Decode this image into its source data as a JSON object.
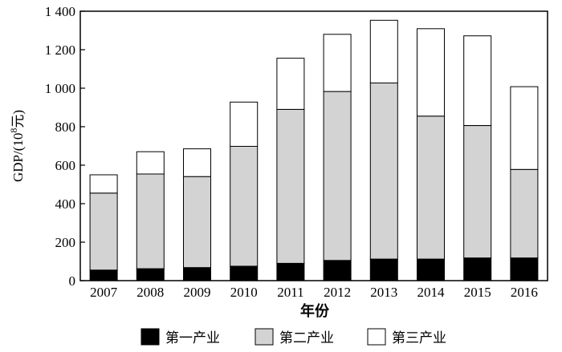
{
  "chart_data": {
    "type": "bar",
    "stacked": true,
    "categories": [
      "2007",
      "2008",
      "2009",
      "2010",
      "2011",
      "2012",
      "2013",
      "2014",
      "2015",
      "2016"
    ],
    "series": [
      {
        "name": "第一产业",
        "color": "#000000",
        "values": [
          55,
          62,
          68,
          75,
          90,
          105,
          112,
          112,
          118,
          118
        ]
      },
      {
        "name": "第二产业",
        "color": "#d3d3d3",
        "values": [
          400,
          492,
          473,
          623,
          800,
          878,
          915,
          743,
          688,
          460
        ]
      },
      {
        "name": "第三产业",
        "color": "#ffffff",
        "values": [
          95,
          116,
          144,
          230,
          266,
          297,
          326,
          454,
          466,
          430
        ]
      }
    ],
    "xlabel": "年份",
    "ylabel_parts": {
      "prefix": "GDP/(10",
      "exponent": "8",
      "suffix": "元)"
    },
    "ylim": [
      0,
      1400
    ],
    "yticks": [
      0,
      200,
      400,
      600,
      800,
      1000,
      1200,
      1400
    ],
    "ytick_labels": [
      "0",
      "200",
      "400",
      "600",
      "800",
      "1 000",
      "1 200",
      "1 400"
    ],
    "legend_position": "bottom",
    "grid": false
  }
}
